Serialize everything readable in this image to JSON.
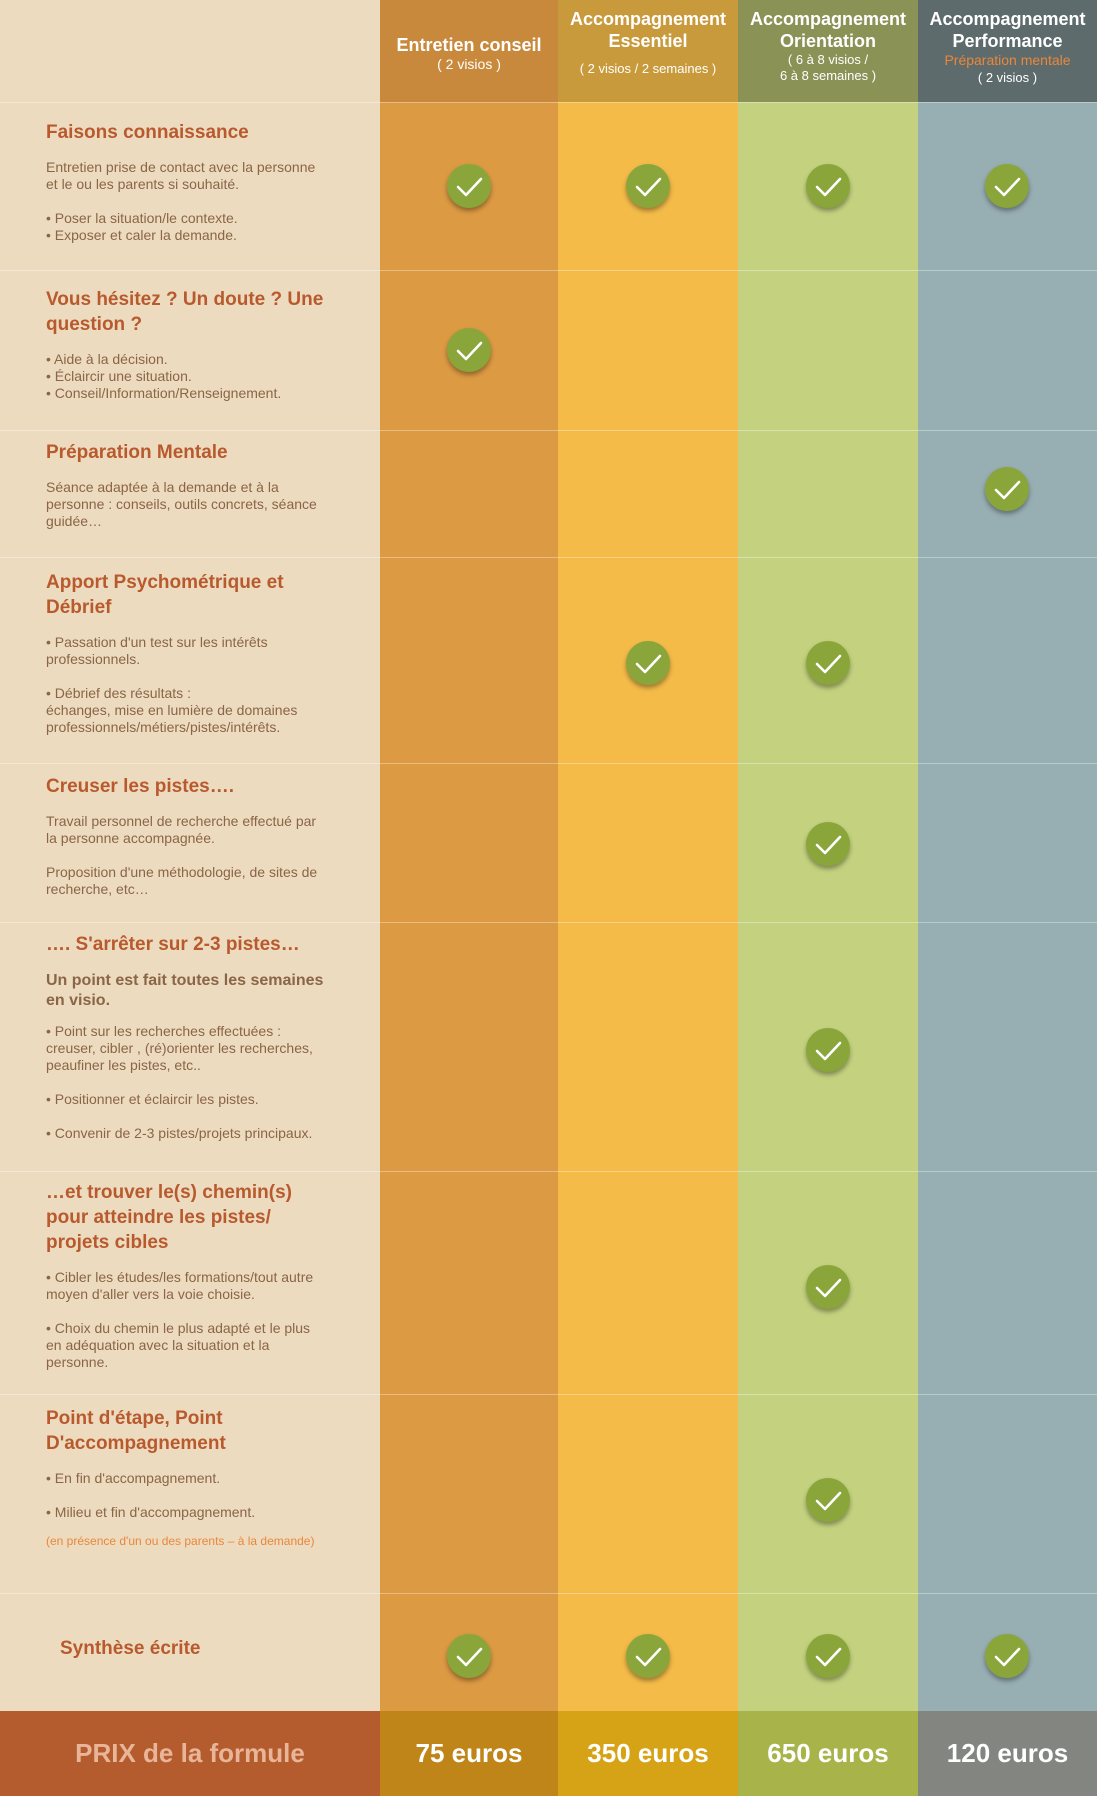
{
  "columns": [
    {
      "title": "Entretien conseil",
      "sub": "( 2 visios )"
    },
    {
      "title": "Accompagnement Essentiel",
      "sub": "( 2 visios / 2 semaines )"
    },
    {
      "title": "Accompagnement Orientation",
      "sub": "( 6 à 8 visios /",
      "sub2": "6 à 8 semaines )"
    },
    {
      "title": "Accompagnement Performance",
      "highlight": "Préparation mentale",
      "sub": "( 2 visios )"
    }
  ],
  "rows": [
    {
      "title": "Faisons connaissance",
      "lines": [
        "Entretien prise de contact avec la personne",
        "et le ou les parents si souhaité.",
        "",
        "• Poser la situation/le contexte.",
        "• Exposer et caler la demande."
      ],
      "checks": [
        true,
        true,
        true,
        true
      ]
    },
    {
      "title": "Vous hésitez ? Un doute ? Une question ?",
      "lines": [
        "• Aide à la décision.",
        "• Éclaircir une situation.",
        "• Conseil/Information/Renseignement."
      ],
      "checks": [
        true,
        false,
        false,
        false
      ]
    },
    {
      "title": "Préparation Mentale",
      "lines": [
        "Séance adaptée à la demande et à la",
        "personne : conseils, outils concrets, séance",
        "guidée…"
      ],
      "checks": [
        false,
        false,
        false,
        true
      ]
    },
    {
      "title": "Apport Psychométrique et Débrief",
      "lines": [
        "• Passation d'un test sur les intérêts",
        "professionnels.",
        "",
        "• Débrief des résultats :",
        "échanges, mise en lumière de domaines",
        "professionnels/métiers/pistes/intérêts."
      ],
      "checks": [
        false,
        true,
        true,
        false
      ]
    },
    {
      "title": "Creuser les pistes….",
      "lines": [
        "Travail personnel de recherche effectué par",
        "la personne accompagnée.",
        "",
        "Proposition d'une méthodologie, de sites de",
        "recherche, etc…"
      ],
      "checks": [
        false,
        false,
        true,
        false
      ]
    },
    {
      "title": "…. S'arrêter sur 2-3 pistes…",
      "subtitle": "Un point est fait toutes les semaines en visio.",
      "lines": [
        "• Point sur les recherches effectuées :",
        "creuser, cibler , (ré)orienter les recherches,",
        "peaufiner les pistes, etc..",
        "",
        "• Positionner et éclaircir les pistes.",
        "",
        "• Convenir de 2-3 pistes/projets principaux."
      ],
      "checks": [
        false,
        false,
        true,
        false
      ]
    },
    {
      "title": "…et trouver le(s) chemin(s) pour atteindre les pistes/ projets cibles",
      "lines": [
        "• Cibler les études/les formations/tout autre",
        "moyen d'aller vers la voie choisie.",
        "",
        "• Choix du chemin le plus adapté et le plus",
        "en adéquation avec la situation et la",
        "personne."
      ],
      "checks": [
        false,
        false,
        true,
        false
      ]
    },
    {
      "title": "Point d'étape, Point D'accompagnement",
      "lines": [
        "• En fin d'accompagnement.",
        "",
        "• Milieu et fin d'accompagnement."
      ],
      "note": "(en présence d'un ou des parents – à la demande)",
      "checks": [
        false,
        false,
        true,
        false
      ]
    },
    {
      "title": "Synthèse écrite",
      "lines": [],
      "checks": [
        true,
        true,
        true,
        true
      ]
    }
  ],
  "price": {
    "label": "PRIX de la formule",
    "values": [
      "75 euros",
      "350 euros",
      "650 euros",
      "120 euros"
    ]
  },
  "colors": {
    "accent_title": "#b85a2e",
    "check_green": "#8aa63b"
  }
}
